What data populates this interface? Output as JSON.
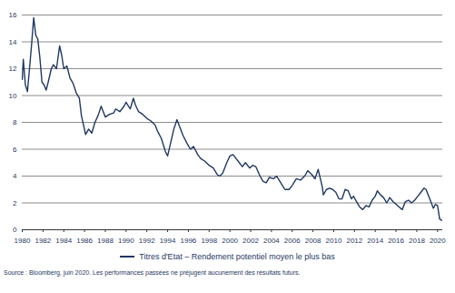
{
  "chart_data": {
    "type": "line",
    "source": "Source : Bloomberg, juin 2020. Les performances passées ne préjugent aucunement des résultats futurs.",
    "legend": "bottom",
    "grid": true,
    "xlim": [
      1980,
      2020.5
    ],
    "xticks": [
      1980,
      1982,
      1984,
      1986,
      1988,
      1990,
      1992,
      1994,
      1996,
      1998,
      2000,
      2002,
      2004,
      2006,
      2008,
      2010,
      2012,
      2014,
      2016,
      2018,
      2020
    ],
    "ylim": [
      0,
      16
    ],
    "yticks": [
      0,
      2,
      4,
      6,
      8,
      10,
      12,
      14,
      16
    ],
    "x": [
      1980.0,
      1980.1,
      1980.3,
      1980.5,
      1980.7,
      1980.9,
      1981.1,
      1981.3,
      1981.5,
      1981.7,
      1981.9,
      1982.1,
      1982.3,
      1982.5,
      1982.8,
      1983.0,
      1983.3,
      1983.6,
      1983.8,
      1984.0,
      1984.3,
      1984.6,
      1984.9,
      1985.2,
      1985.5,
      1985.7,
      1985.9,
      1986.1,
      1986.4,
      1986.7,
      1987.0,
      1987.3,
      1987.6,
      1987.8,
      1988.0,
      1988.4,
      1988.8,
      1989.0,
      1989.4,
      1989.8,
      1990.0,
      1990.4,
      1990.7,
      1990.9,
      1991.2,
      1991.6,
      1992.0,
      1992.4,
      1992.8,
      1993.0,
      1993.4,
      1993.8,
      1994.0,
      1994.3,
      1994.6,
      1994.9,
      1995.2,
      1995.5,
      1995.9,
      1996.2,
      1996.5,
      1996.9,
      1997.2,
      1997.6,
      1998.0,
      1998.4,
      1998.8,
      1999.0,
      1999.3,
      1999.7,
      2000.0,
      2000.3,
      2000.6,
      2000.9,
      2001.2,
      2001.5,
      2001.9,
      2002.2,
      2002.5,
      2002.9,
      2003.2,
      2003.5,
      2003.8,
      2004.2,
      2004.5,
      2004.9,
      2005.3,
      2005.7,
      2006.0,
      2006.4,
      2006.8,
      2007.2,
      2007.5,
      2007.9,
      2008.2,
      2008.5,
      2008.9,
      2009.0,
      2009.3,
      2009.6,
      2009.9,
      2010.2,
      2010.5,
      2010.8,
      2011.1,
      2011.4,
      2011.7,
      2011.9,
      2012.2,
      2012.5,
      2012.8,
      2013.1,
      2013.4,
      2013.7,
      2014.0,
      2014.2,
      2014.5,
      2014.8,
      2015.1,
      2015.4,
      2015.7,
      2016.0,
      2016.3,
      2016.6,
      2016.9,
      2017.2,
      2017.5,
      2017.8,
      2018.1,
      2018.4,
      2018.7,
      2018.9,
      2019.1,
      2019.3,
      2019.6,
      2019.8,
      2020.0,
      2020.2,
      2020.4
    ],
    "series": [
      {
        "name": "Titres d'Etat – Rendement potentiel moyen le plus bas",
        "color": "#1f3864",
        "values": [
          11.2,
          12.7,
          10.8,
          10.3,
          12.0,
          13.8,
          15.8,
          14.5,
          14.2,
          12.8,
          11.0,
          10.8,
          10.4,
          11.0,
          12.0,
          12.3,
          12.0,
          13.7,
          13.0,
          12.0,
          12.2,
          11.3,
          10.9,
          10.2,
          9.8,
          8.5,
          7.8,
          7.1,
          7.5,
          7.2,
          8.0,
          8.5,
          9.2,
          8.8,
          8.4,
          8.6,
          8.7,
          9.0,
          8.8,
          9.2,
          9.5,
          9.0,
          9.8,
          9.3,
          8.8,
          8.6,
          8.3,
          8.1,
          7.8,
          7.4,
          6.8,
          5.8,
          5.5,
          6.5,
          7.5,
          8.2,
          7.6,
          7.0,
          6.4,
          6.0,
          6.2,
          5.6,
          5.3,
          5.1,
          4.8,
          4.6,
          4.1,
          4.0,
          4.2,
          5.0,
          5.5,
          5.6,
          5.3,
          5.0,
          4.7,
          5.0,
          4.6,
          4.8,
          4.7,
          4.0,
          3.6,
          3.5,
          3.9,
          3.8,
          4.0,
          3.5,
          3.0,
          3.0,
          3.3,
          3.8,
          3.7,
          4.0,
          4.4,
          4.1,
          3.8,
          4.5,
          3.2,
          2.6,
          3.0,
          3.1,
          3.0,
          2.8,
          2.3,
          2.3,
          3.0,
          2.9,
          2.3,
          2.5,
          2.1,
          1.7,
          1.5,
          1.8,
          1.7,
          2.2,
          2.5,
          2.9,
          2.6,
          2.4,
          2.0,
          2.4,
          2.1,
          1.9,
          1.7,
          1.5,
          2.1,
          2.2,
          2.0,
          2.2,
          2.5,
          2.8,
          3.1,
          3.0,
          2.6,
          2.2,
          1.6,
          1.9,
          1.8,
          0.8,
          0.7
        ]
      }
    ]
  }
}
